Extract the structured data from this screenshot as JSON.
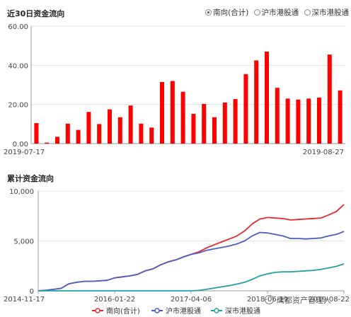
{
  "top": {
    "title": "近30日资金流向",
    "tabs": [
      {
        "label": "南向(合计)",
        "selected": true
      },
      {
        "label": "沪市港股通",
        "selected": false
      },
      {
        "label": "深市港股通",
        "selected": false
      }
    ]
  },
  "bottom": {
    "title": "累计资金流向"
  },
  "watermark": "鹰都资产管理人",
  "chart_data": [
    {
      "type": "bar",
      "title": "近30日资金流向",
      "color": "#ff0000",
      "ylim": [
        0,
        60
      ],
      "y_ticks": [
        "0.00",
        "20.00",
        "40.00",
        "60.00"
      ],
      "x_tick_labels": [
        "2019-07-17",
        "2019-08-27"
      ],
      "grid": true,
      "values": [
        10.5,
        0.5,
        3.5,
        10.2,
        7.0,
        16.2,
        10.0,
        17.5,
        13.5,
        19.5,
        10.2,
        8.2,
        31.5,
        32.0,
        26.5,
        15.2,
        20.3,
        13.5,
        21.0,
        22.8,
        35.5,
        42.5,
        47.0,
        28.5,
        23.0,
        22.5,
        23.0,
        23.5,
        45.5,
        27.2
      ]
    },
    {
      "type": "line",
      "title": "累计资金流向",
      "ylim": [
        0,
        10000
      ],
      "y_ticks": [
        "0",
        "5,000",
        "10,000"
      ],
      "x_tick_labels": [
        "2014-11-17",
        "2016-01-22",
        "2017-04-06",
        "2018-06-19",
        "2019-08-22"
      ],
      "legend_position": "bottom",
      "series": [
        {
          "name": "南向(合计)",
          "color": "#e8282d",
          "values": [
            0,
            50,
            150,
            250,
            700,
            850,
            950,
            950,
            1000,
            1050,
            1300,
            1400,
            1500,
            1650,
            2000,
            2200,
            2600,
            2900,
            3100,
            3400,
            3650,
            3900,
            4300,
            4600,
            4900,
            5200,
            5500,
            6000,
            6700,
            7200,
            7350,
            7300,
            7250,
            7100,
            7150,
            7200,
            7250,
            7300,
            7600,
            7950,
            8650
          ]
        },
        {
          "name": "沪市港股通",
          "color": "#4a5fc1",
          "values": [
            0,
            50,
            150,
            250,
            700,
            850,
            950,
            950,
            1000,
            1050,
            1300,
            1400,
            1500,
            1650,
            2000,
            2200,
            2600,
            2900,
            3100,
            3400,
            3650,
            3800,
            4050,
            4200,
            4350,
            4500,
            4700,
            5000,
            5500,
            5850,
            5800,
            5650,
            5500,
            5250,
            5250,
            5200,
            5250,
            5300,
            5500,
            5650,
            5950
          ]
        },
        {
          "name": "深市港股通",
          "color": "#23a0a6",
          "values": [
            0,
            0,
            0,
            0,
            0,
            0,
            0,
            0,
            0,
            0,
            0,
            0,
            0,
            0,
            0,
            0,
            0,
            0,
            0,
            0,
            0,
            40,
            150,
            280,
            400,
            520,
            680,
            850,
            1150,
            1500,
            1700,
            1850,
            1900,
            1900,
            1950,
            2000,
            2050,
            2150,
            2300,
            2450,
            2700
          ]
        }
      ]
    }
  ]
}
